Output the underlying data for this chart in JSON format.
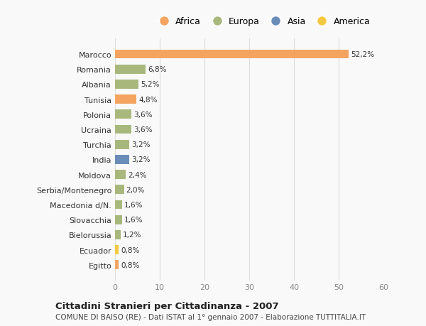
{
  "countries": [
    "Marocco",
    "Romania",
    "Albania",
    "Tunisia",
    "Polonia",
    "Ucraina",
    "Turchia",
    "India",
    "Moldova",
    "Serbia/Montenegro",
    "Macedonia d/N.",
    "Slovacchia",
    "Bielorussia",
    "Ecuador",
    "Egitto"
  ],
  "values": [
    52.2,
    6.8,
    5.2,
    4.8,
    3.6,
    3.6,
    3.2,
    3.2,
    2.4,
    2.0,
    1.6,
    1.6,
    1.2,
    0.8,
    0.8
  ],
  "labels": [
    "52,2%",
    "6,8%",
    "5,2%",
    "4,8%",
    "3,6%",
    "3,6%",
    "3,2%",
    "3,2%",
    "2,4%",
    "2,0%",
    "1,6%",
    "1,6%",
    "1,2%",
    "0,8%",
    "0,8%"
  ],
  "continents": [
    "Africa",
    "Europa",
    "Europa",
    "Africa",
    "Europa",
    "Europa",
    "Europa",
    "Asia",
    "Europa",
    "Europa",
    "Europa",
    "Europa",
    "Europa",
    "America",
    "Africa"
  ],
  "colors": {
    "Africa": "#F4A460",
    "Europa": "#A8B87C",
    "Asia": "#6A8CB8",
    "America": "#F5C842"
  },
  "xlim": [
    0,
    60
  ],
  "xticks": [
    0,
    10,
    20,
    30,
    40,
    50,
    60
  ],
  "title": "Cittadini Stranieri per Cittadinanza - 2007",
  "subtitle": "COMUNE DI BAISO (RE) - Dati ISTAT al 1° gennaio 2007 - Elaborazione TUTTITALIA.IT",
  "background_color": "#f9f9f9",
  "bar_height": 0.6,
  "grid_color": "#dddddd",
  "legend_order": [
    "Africa",
    "Europa",
    "Asia",
    "America"
  ]
}
